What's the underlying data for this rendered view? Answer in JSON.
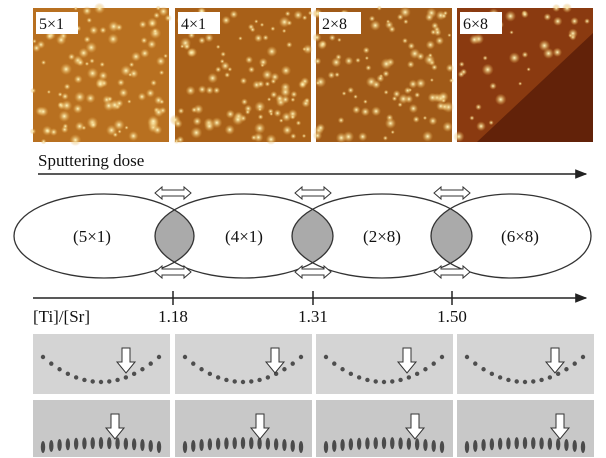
{
  "stm_images": [
    {
      "label": "5×1"
    },
    {
      "label": "4×1"
    },
    {
      "label": "2×8"
    },
    {
      "label": "6×8"
    }
  ],
  "sputtering": {
    "label": "Sputtering dose"
  },
  "phases": [
    "(5×1)",
    "(4×1)",
    "(2×8)",
    "(6×8)"
  ],
  "composition_axis": {
    "label": "[Ti]/[Sr]",
    "ticks": [
      "1.18",
      "1.31",
      "1.50"
    ]
  }
}
